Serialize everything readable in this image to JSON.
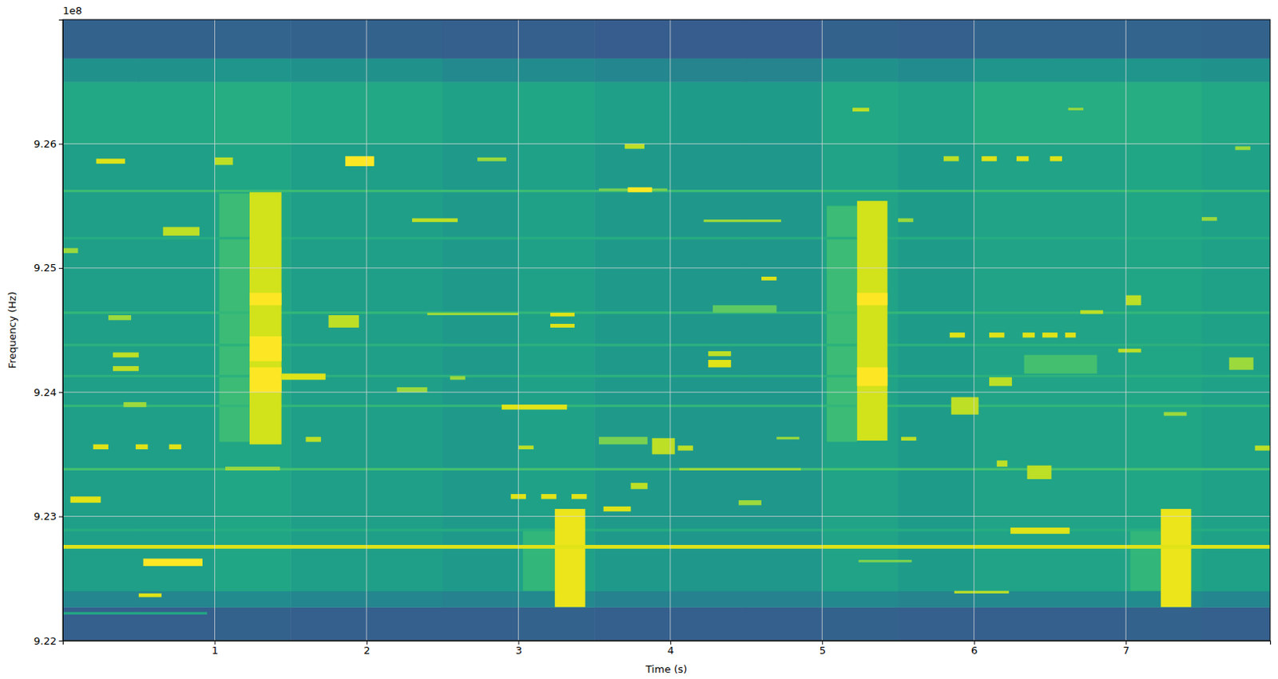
{
  "chart_data": {
    "type": "spectrogram",
    "x_label": "Time (s)",
    "y_label": "Frequency (Hz)",
    "y_offset_text": "1e8",
    "xlim": [
      0,
      7.95
    ],
    "ylim": [
      9.22,
      9.27
    ],
    "xticks": [
      1,
      2,
      3,
      4,
      5,
      6,
      7
    ],
    "yticks": [
      9.22,
      9.23,
      9.24,
      9.25,
      9.26
    ],
    "grid": true,
    "level_range": [
      0,
      1
    ],
    "background": {
      "t_edges": [
        0,
        0.5,
        1,
        1.5,
        2,
        2.5,
        3,
        3.5,
        4,
        4.5,
        5,
        5.5,
        6,
        6.5,
        7,
        7.5,
        7.95
      ],
      "f_edges": [
        9.22,
        9.2227,
        9.224,
        9.26,
        9.265,
        9.2669,
        9.27
      ],
      "levels": [
        [
          0.3,
          0.3,
          0.31,
          0.3,
          0.3,
          0.3,
          0.31,
          0.3,
          0.3,
          0.3,
          0.31,
          0.3,
          0.3,
          0.3,
          0.31,
          0.3
        ],
        [
          0.46,
          0.46,
          0.48,
          0.46,
          0.46,
          0.44,
          0.47,
          0.44,
          0.44,
          0.44,
          0.47,
          0.45,
          0.47,
          0.47,
          0.48,
          0.46
        ],
        [
          0.56,
          0.56,
          0.59,
          0.56,
          0.56,
          0.54,
          0.57,
          0.54,
          0.53,
          0.53,
          0.58,
          0.55,
          0.58,
          0.58,
          0.59,
          0.57
        ],
        [
          0.6,
          0.6,
          0.62,
          0.6,
          0.6,
          0.57,
          0.59,
          0.56,
          0.55,
          0.55,
          0.6,
          0.58,
          0.62,
          0.62,
          0.62,
          0.6
        ],
        [
          0.5,
          0.5,
          0.52,
          0.5,
          0.5,
          0.47,
          0.48,
          0.46,
          0.45,
          0.45,
          0.5,
          0.48,
          0.52,
          0.52,
          0.52,
          0.5
        ],
        [
          0.31,
          0.31,
          0.32,
          0.31,
          0.31,
          0.3,
          0.3,
          0.29,
          0.29,
          0.29,
          0.31,
          0.3,
          0.32,
          0.32,
          0.32,
          0.31
        ]
      ]
    },
    "signals": [
      [
        1.03,
        1.24,
        9.236,
        9.256,
        0.68
      ],
      [
        5.03,
        5.23,
        9.236,
        9.255,
        0.68
      ],
      [
        3.03,
        3.24,
        9.224,
        9.229,
        0.66
      ],
      [
        7.03,
        7.23,
        9.224,
        9.229,
        0.66
      ],
      [
        0,
        7.95,
        9.2561,
        9.2563,
        0.68
      ],
      [
        0,
        7.95,
        9.2463,
        9.2465,
        0.66
      ],
      [
        0,
        7.95,
        9.2437,
        9.2439,
        0.64
      ],
      [
        0,
        7.95,
        9.2412,
        9.2414,
        0.64
      ],
      [
        0,
        7.95,
        9.2388,
        9.239,
        0.66
      ],
      [
        0,
        7.95,
        9.2337,
        9.2339,
        0.7
      ],
      [
        0,
        7.95,
        9.2523,
        9.2525,
        0.62
      ],
      [
        0,
        7.95,
        9.2288,
        9.229,
        0.62
      ],
      [
        0,
        0.95,
        9.2221,
        9.2223,
        0.6
      ],
      [
        4.28,
        4.7,
        9.2464,
        9.247,
        0.75
      ],
      [
        6.33,
        6.81,
        9.2415,
        9.243,
        0.7
      ],
      [
        1.23,
        1.44,
        9.2358,
        9.2561,
        0.93
      ],
      [
        1.23,
        1.44,
        9.24,
        9.242,
        1.0
      ],
      [
        1.23,
        1.44,
        9.2425,
        9.2445,
        1.0
      ],
      [
        1.23,
        1.44,
        9.247,
        9.248,
        1.0
      ],
      [
        5.23,
        5.43,
        9.2361,
        9.2554,
        0.93
      ],
      [
        5.23,
        5.43,
        9.2405,
        9.242,
        1.0
      ],
      [
        5.23,
        5.43,
        9.247,
        9.248,
        1.0
      ],
      [
        3.24,
        3.44,
        9.2227,
        9.2306,
        0.97
      ],
      [
        7.23,
        7.43,
        9.2227,
        9.2306,
        0.97
      ],
      [
        0.22,
        0.41,
        9.2584,
        9.2588,
        0.95
      ],
      [
        1.86,
        2.05,
        9.2582,
        9.259,
        1.0
      ],
      [
        0.66,
        0.9,
        9.2526,
        9.2533,
        0.9
      ],
      [
        0.53,
        0.92,
        9.226,
        9.2266,
        1.0
      ],
      [
        0.5,
        0.65,
        9.2235,
        9.2238,
        0.95
      ],
      [
        1.44,
        1.73,
        9.241,
        9.2415,
        0.95
      ],
      [
        2.4,
        3.0,
        9.2462,
        9.2464,
        0.85
      ],
      [
        2.89,
        3.32,
        9.2386,
        9.239,
        0.95
      ],
      [
        3.53,
        3.85,
        9.2358,
        9.2364,
        0.8
      ],
      [
        3.88,
        4.03,
        9.235,
        9.2363,
        0.9
      ],
      [
        3.56,
        3.74,
        9.2304,
        9.2308,
        0.95
      ],
      [
        3.74,
        3.85,
        9.2322,
        9.2327,
        0.9
      ],
      [
        3.53,
        3.98,
        9.2562,
        9.2564,
        0.8
      ],
      [
        3.72,
        3.88,
        9.2561,
        9.2565,
        1.0
      ],
      [
        4.22,
        4.73,
        9.2537,
        9.2539,
        0.85
      ],
      [
        4.06,
        4.86,
        9.2337,
        9.2339,
        0.85
      ],
      [
        3.21,
        3.37,
        9.2461,
        9.2464,
        0.95
      ],
      [
        3.21,
        3.37,
        9.2452,
        9.2455,
        0.95
      ],
      [
        5.87,
        6.23,
        9.2238,
        9.224,
        0.9
      ],
      [
        5.85,
        6.03,
        9.2382,
        9.2396,
        0.9
      ],
      [
        6.24,
        6.63,
        9.2286,
        9.2291,
        0.95
      ],
      [
        6.35,
        6.51,
        9.233,
        9.2341,
        0.9
      ],
      [
        7.68,
        7.84,
        9.2418,
        9.2428,
        0.85
      ],
      [
        5.24,
        5.59,
        9.2263,
        9.2265,
        0.8
      ],
      [
        0.05,
        0.25,
        9.2311,
        9.2316,
        0.95
      ],
      [
        0.2,
        0.3,
        9.2354,
        9.2358,
        0.95
      ],
      [
        0.48,
        0.56,
        9.2354,
        9.2358,
        0.95
      ],
      [
        0.7,
        0.78,
        9.2354,
        9.2358,
        0.95
      ],
      [
        0.33,
        0.5,
        9.2428,
        9.2432,
        0.9
      ],
      [
        0.33,
        0.5,
        9.2417,
        9.2421,
        0.9
      ],
      [
        0.3,
        0.45,
        9.2458,
        9.2462,
        0.85
      ],
      [
        0,
        0.1,
        9.2512,
        9.2516,
        0.85
      ],
      [
        0.4,
        0.55,
        9.2388,
        9.2392,
        0.85
      ],
      [
        1.07,
        1.43,
        9.2337,
        9.234,
        0.85
      ],
      [
        1.0,
        1.12,
        9.2583,
        9.2589,
        0.9
      ],
      [
        1.6,
        1.7,
        9.236,
        9.2364,
        0.9
      ],
      [
        1.75,
        1.95,
        9.2452,
        9.2462,
        0.9
      ],
      [
        2.3,
        2.6,
        9.2537,
        9.254,
        0.9
      ],
      [
        2.55,
        2.65,
        9.241,
        9.2413,
        0.85
      ],
      [
        2.2,
        2.4,
        9.24,
        9.2404,
        0.85
      ],
      [
        2.73,
        2.92,
        9.2586,
        9.2589,
        0.85
      ],
      [
        2.95,
        3.05,
        9.2314,
        9.2318,
        0.95
      ],
      [
        3.15,
        3.25,
        9.2314,
        9.2318,
        0.95
      ],
      [
        3.35,
        3.45,
        9.2314,
        9.2318,
        0.95
      ],
      [
        3.0,
        3.1,
        9.2354,
        9.2357,
        0.9
      ],
      [
        3.7,
        3.83,
        9.2596,
        9.26,
        0.9
      ],
      [
        4.05,
        4.15,
        9.2353,
        9.2357,
        0.9
      ],
      [
        4.45,
        4.6,
        9.2309,
        9.2313,
        0.85
      ],
      [
        4.6,
        4.7,
        9.249,
        9.2493,
        0.95
      ],
      [
        4.25,
        4.4,
        9.242,
        9.2426,
        0.95
      ],
      [
        4.25,
        4.4,
        9.2429,
        9.2433,
        0.9
      ],
      [
        4.7,
        4.85,
        9.2362,
        9.2364,
        0.85
      ],
      [
        5.2,
        5.31,
        9.2626,
        9.2629,
        0.9
      ],
      [
        5.5,
        5.6,
        9.2537,
        9.254,
        0.85
      ],
      [
        5.52,
        5.62,
        9.2361,
        9.2364,
        0.9
      ],
      [
        5.8,
        5.9,
        9.2586,
        9.259,
        0.9
      ],
      [
        6.05,
        6.15,
        9.2586,
        9.259,
        0.95
      ],
      [
        6.28,
        6.36,
        9.2586,
        9.259,
        0.95
      ],
      [
        6.5,
        6.58,
        9.2586,
        9.259,
        0.95
      ],
      [
        6.62,
        6.72,
        9.2627,
        9.2629,
        0.85
      ],
      [
        5.84,
        5.94,
        9.2444,
        9.2448,
        0.95
      ],
      [
        6.1,
        6.2,
        9.2444,
        9.2448,
        0.95
      ],
      [
        6.32,
        6.4,
        9.2444,
        9.2448,
        0.95
      ],
      [
        6.45,
        6.55,
        9.2444,
        9.2448,
        0.95
      ],
      [
        6.6,
        6.67,
        9.2444,
        9.2448,
        0.95
      ],
      [
        6.1,
        6.25,
        9.2405,
        9.2412,
        0.9
      ],
      [
        6.15,
        6.22,
        9.234,
        9.2345,
        0.9
      ],
      [
        6.7,
        6.85,
        9.2463,
        9.2466,
        0.9
      ],
      [
        7.0,
        7.1,
        9.247,
        9.2478,
        0.9
      ],
      [
        7.5,
        7.6,
        9.2538,
        9.2541,
        0.85
      ],
      [
        7.25,
        7.4,
        9.2381,
        9.2384,
        0.85
      ],
      [
        6.95,
        7.1,
        9.2432,
        9.2435,
        0.9
      ],
      [
        7.72,
        7.82,
        9.2595,
        9.2598,
        0.85
      ],
      [
        7.85,
        7.95,
        9.2353,
        9.2357,
        0.9
      ],
      [
        0,
        7.95,
        9.2274,
        9.2277,
        0.95
      ]
    ]
  }
}
